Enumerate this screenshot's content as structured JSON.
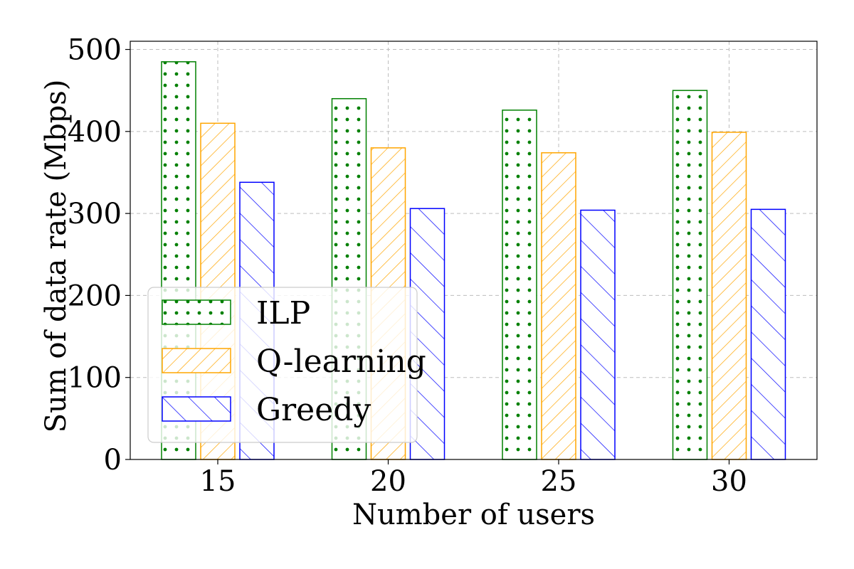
{
  "chart_data": {
    "type": "bar",
    "xlabel": "Number of users",
    "ylabel": "Sum of data rate (Mbps)",
    "categories": [
      "15",
      "20",
      "25",
      "30"
    ],
    "ylim": [
      0,
      510
    ],
    "yticks": [
      0,
      100,
      200,
      300,
      400,
      500
    ],
    "grid": true,
    "legend_position": "lower-left",
    "series": [
      {
        "name": "ILP",
        "values": [
          485,
          440,
          426,
          450
        ],
        "color": "#008000",
        "hatch": "dots"
      },
      {
        "name": "Q-learning",
        "values": [
          410,
          380,
          374,
          399
        ],
        "color": "#FFA500",
        "hatch": "forward-diagonal"
      },
      {
        "name": "Greedy",
        "values": [
          338,
          306,
          304,
          305
        ],
        "color": "#0000FF",
        "hatch": "back-diagonal"
      }
    ]
  }
}
